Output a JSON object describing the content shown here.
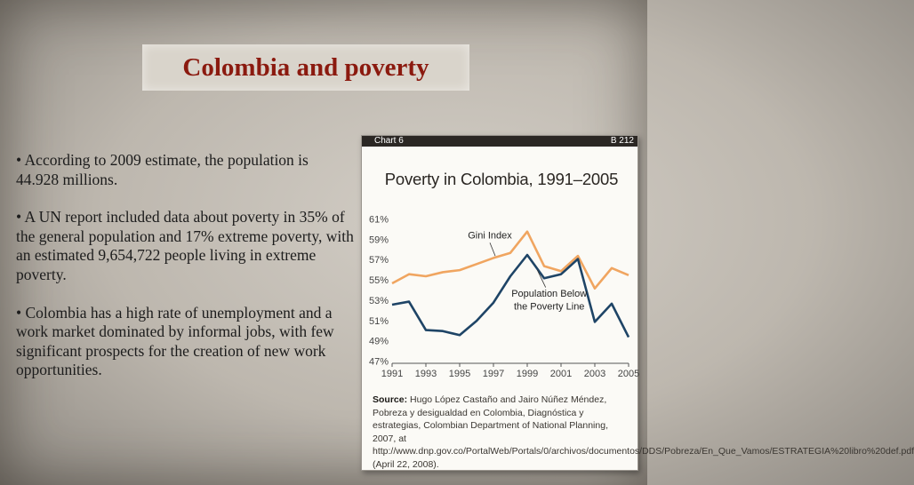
{
  "slide": {
    "title": "Colombia and poverty",
    "bullets": [
      "• According to 2009 estimate, the population is 44.928 millions.",
      "• A UN report included data about poverty in 35% of the general population and 17% extreme poverty, with an estimated 9,654,722 people living in extreme poverty.",
      "• Colombia has a high rate of unemployment and a work market dominated by informal jobs, with few significant prospects for the creation of new work opportunities."
    ]
  },
  "chart_header": {
    "left": "Chart 6",
    "right": "B 212"
  },
  "source": {
    "label": "Source:",
    "text": "Hugo López Castaño and Jairo Núñez Méndez, Pobreza y desigualdad en Colombia, Diagnóstica y estrategias, Colombian Department of National Planning, 2007, at http://www.dnp.gov.co/PortalWeb/Portals/0/archivos/documentos/DDS/Pobreza/En_Que_Vamos/ESTRATEGIA%20libro%20def.pdf (April 22, 2008)."
  },
  "colors": {
    "title_text": "#8b1a0f",
    "gini_line": "#f0a560",
    "poverty_line": "#1e4466"
  },
  "chart_data": {
    "type": "line",
    "title": "Poverty in Colombia, 1991–2005",
    "xlim": [
      1991,
      2005
    ],
    "ylim": [
      47,
      61
    ],
    "x_ticks": [
      "1991",
      "1993",
      "1995",
      "1997",
      "1999",
      "2001",
      "2003",
      "2005"
    ],
    "y_ticks": [
      "61%",
      "59%",
      "57%",
      "55%",
      "53%",
      "51%",
      "49%",
      "47%"
    ],
    "grid": false,
    "series": [
      {
        "name": "Gini Index",
        "x": [
          1991,
          1992,
          1993,
          1994,
          1995,
          1996,
          1997,
          1998,
          1999,
          2000,
          2001,
          2002,
          2003,
          2004,
          2005
        ],
        "values": [
          54.7,
          55.6,
          55.4,
          55.8,
          56.0,
          56.6,
          57.2,
          57.7,
          59.8,
          56.4,
          55.9,
          57.4,
          54.2,
          56.2,
          55.5
        ]
      },
      {
        "name": "Population Below the Poverty Line",
        "x": [
          1991,
          1992,
          1993,
          1994,
          1995,
          1996,
          1997,
          1998,
          1999,
          2000,
          2001,
          2002,
          2003,
          2004,
          2005
        ],
        "values": [
          52.6,
          52.9,
          50.1,
          50.0,
          49.6,
          51.0,
          52.8,
          55.4,
          57.5,
          55.2,
          55.6,
          57.1,
          50.9,
          52.7,
          49.4
        ]
      }
    ]
  }
}
